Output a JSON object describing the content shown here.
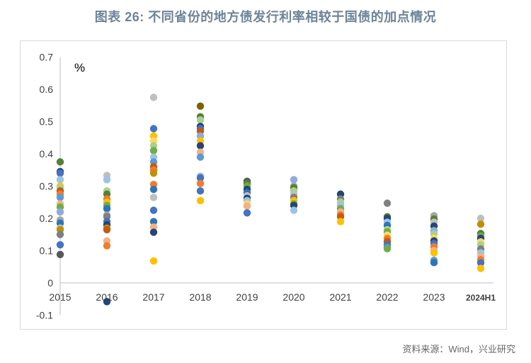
{
  "title": "图表 26: 不同省份的地方债发行利率相较于国债的加点情况",
  "source": "资料来源：Wind，兴业研究",
  "chart_data": {
    "type": "scatter",
    "unit_label": "%",
    "categories": [
      "2015",
      "2016",
      "2017",
      "2018",
      "2019",
      "2020",
      "2021",
      "2022",
      "2023",
      "2024H1"
    ],
    "ylim": [
      -0.1,
      0.7
    ],
    "yticks": [
      "-0.1",
      "0",
      "0.1",
      "0.2",
      "0.3",
      "0.4",
      "0.5",
      "0.6",
      "0.7"
    ],
    "grid": false,
    "legend": "none",
    "points": [
      {
        "x": "2015",
        "y": 0.375,
        "color": "#548235"
      },
      {
        "x": "2015",
        "y": 0.345,
        "color": "#264478"
      },
      {
        "x": "2015",
        "y": 0.34,
        "color": "#4472c4"
      },
      {
        "x": "2015",
        "y": 0.32,
        "color": "#9dc3e6"
      },
      {
        "x": "2015",
        "y": 0.3,
        "color": "#ffc000"
      },
      {
        "x": "2015",
        "y": 0.295,
        "color": "#a9d18e"
      },
      {
        "x": "2015",
        "y": 0.285,
        "color": "#c55a11"
      },
      {
        "x": "2015",
        "y": 0.275,
        "color": "#ed7d31"
      },
      {
        "x": "2015",
        "y": 0.265,
        "color": "#5b9bd5"
      },
      {
        "x": "2015",
        "y": 0.245,
        "color": "#f4b183"
      },
      {
        "x": "2015",
        "y": 0.235,
        "color": "#70ad47"
      },
      {
        "x": "2015",
        "y": 0.22,
        "color": "#8faadc"
      },
      {
        "x": "2015",
        "y": 0.195,
        "color": "#a5a5a5"
      },
      {
        "x": "2015",
        "y": 0.185,
        "color": "#2e75b6"
      },
      {
        "x": "2015",
        "y": 0.17,
        "color": "#bfbfbf"
      },
      {
        "x": "2015",
        "y": 0.165,
        "color": "#bf9000"
      },
      {
        "x": "2015",
        "y": 0.15,
        "color": "#7f7f7f"
      },
      {
        "x": "2015",
        "y": 0.118,
        "color": "#4472c4"
      },
      {
        "x": "2015",
        "y": 0.088,
        "color": "#595959"
      },
      {
        "x": "2016",
        "y": 0.333,
        "color": "#bfbfbf"
      },
      {
        "x": "2016",
        "y": 0.32,
        "color": "#9dc3e6"
      },
      {
        "x": "2016",
        "y": 0.285,
        "color": "#a9d18e"
      },
      {
        "x": "2016",
        "y": 0.275,
        "color": "#548235"
      },
      {
        "x": "2016",
        "y": 0.26,
        "color": "#ed7d31"
      },
      {
        "x": "2016",
        "y": 0.25,
        "color": "#ffc000"
      },
      {
        "x": "2016",
        "y": 0.24,
        "color": "#70ad47"
      },
      {
        "x": "2016",
        "y": 0.23,
        "color": "#2e75b6"
      },
      {
        "x": "2016",
        "y": 0.21,
        "color": "#a5a5a5"
      },
      {
        "x": "2016",
        "y": 0.205,
        "color": "#7f7f7f"
      },
      {
        "x": "2016",
        "y": 0.19,
        "color": "#4472c4"
      },
      {
        "x": "2016",
        "y": 0.18,
        "color": "#264478"
      },
      {
        "x": "2016",
        "y": 0.17,
        "color": "#bf9000"
      },
      {
        "x": "2016",
        "y": 0.165,
        "color": "#c55a11"
      },
      {
        "x": "2016",
        "y": 0.13,
        "color": "#f4b183"
      },
      {
        "x": "2016",
        "y": 0.115,
        "color": "#ed7d31"
      },
      {
        "x": "2016",
        "y": -0.058,
        "color": "#264478"
      },
      {
        "x": "2017",
        "y": 0.575,
        "color": "#bfbfbf"
      },
      {
        "x": "2017",
        "y": 0.478,
        "color": "#4472c4"
      },
      {
        "x": "2017",
        "y": 0.455,
        "color": "#ffc000"
      },
      {
        "x": "2017",
        "y": 0.44,
        "color": "#ffd966"
      },
      {
        "x": "2017",
        "y": 0.425,
        "color": "#a9d18e"
      },
      {
        "x": "2017",
        "y": 0.41,
        "color": "#70ad47"
      },
      {
        "x": "2017",
        "y": 0.39,
        "color": "#9dc3e6"
      },
      {
        "x": "2017",
        "y": 0.375,
        "color": "#5b9bd5"
      },
      {
        "x": "2017",
        "y": 0.36,
        "color": "#c55a11"
      },
      {
        "x": "2017",
        "y": 0.35,
        "color": "#ed7d31"
      },
      {
        "x": "2017",
        "y": 0.34,
        "color": "#bf9000"
      },
      {
        "x": "2017",
        "y": 0.305,
        "color": "#ed7d31"
      },
      {
        "x": "2017",
        "y": 0.29,
        "color": "#2e75b6"
      },
      {
        "x": "2017",
        "y": 0.265,
        "color": "#bfbfbf"
      },
      {
        "x": "2017",
        "y": 0.225,
        "color": "#4472c4"
      },
      {
        "x": "2017",
        "y": 0.19,
        "color": "#2e75b6"
      },
      {
        "x": "2017",
        "y": 0.173,
        "color": "#f4b183"
      },
      {
        "x": "2017",
        "y": 0.157,
        "color": "#264478"
      },
      {
        "x": "2017",
        "y": 0.068,
        "color": "#ffc000"
      },
      {
        "x": "2018",
        "y": 0.548,
        "color": "#7f6000"
      },
      {
        "x": "2018",
        "y": 0.515,
        "color": "#548235"
      },
      {
        "x": "2018",
        "y": 0.505,
        "color": "#a9d18e"
      },
      {
        "x": "2018",
        "y": 0.485,
        "color": "#264478"
      },
      {
        "x": "2018",
        "y": 0.478,
        "color": "#4472c4"
      },
      {
        "x": "2018",
        "y": 0.47,
        "color": "#c55a11"
      },
      {
        "x": "2018",
        "y": 0.455,
        "color": "#8faadc"
      },
      {
        "x": "2018",
        "y": 0.44,
        "color": "#ffc000"
      },
      {
        "x": "2018",
        "y": 0.425,
        "color": "#264478"
      },
      {
        "x": "2018",
        "y": 0.405,
        "color": "#f4b183"
      },
      {
        "x": "2018",
        "y": 0.39,
        "color": "#5b9bd5"
      },
      {
        "x": "2018",
        "y": 0.33,
        "color": "#8faadc"
      },
      {
        "x": "2018",
        "y": 0.325,
        "color": "#4472c4"
      },
      {
        "x": "2018",
        "y": 0.308,
        "color": "#ed7d31"
      },
      {
        "x": "2018",
        "y": 0.285,
        "color": "#4472c4"
      },
      {
        "x": "2018",
        "y": 0.255,
        "color": "#ffc000"
      },
      {
        "x": "2019",
        "y": 0.315,
        "color": "#595959"
      },
      {
        "x": "2019",
        "y": 0.308,
        "color": "#548235"
      },
      {
        "x": "2019",
        "y": 0.3,
        "color": "#70ad47"
      },
      {
        "x": "2019",
        "y": 0.29,
        "color": "#264478"
      },
      {
        "x": "2019",
        "y": 0.28,
        "color": "#2e75b6"
      },
      {
        "x": "2019",
        "y": 0.27,
        "color": "#bfbfbf"
      },
      {
        "x": "2019",
        "y": 0.262,
        "color": "#264478"
      },
      {
        "x": "2019",
        "y": 0.255,
        "color": "#9dc3e6"
      },
      {
        "x": "2019",
        "y": 0.245,
        "color": "#ffd966"
      },
      {
        "x": "2019",
        "y": 0.238,
        "color": "#f4b183"
      },
      {
        "x": "2019",
        "y": 0.217,
        "color": "#4472c4"
      },
      {
        "x": "2020",
        "y": 0.32,
        "color": "#8faadc"
      },
      {
        "x": "2020",
        "y": 0.3,
        "color": "#a5a5a5"
      },
      {
        "x": "2020",
        "y": 0.295,
        "color": "#548235"
      },
      {
        "x": "2020",
        "y": 0.285,
        "color": "#a9d18e"
      },
      {
        "x": "2020",
        "y": 0.275,
        "color": "#bfbfbf"
      },
      {
        "x": "2020",
        "y": 0.265,
        "color": "#7f7f7f"
      },
      {
        "x": "2020",
        "y": 0.255,
        "color": "#ffc000"
      },
      {
        "x": "2020",
        "y": 0.245,
        "color": "#70ad47"
      },
      {
        "x": "2020",
        "y": 0.24,
        "color": "#264478"
      },
      {
        "x": "2020",
        "y": 0.225,
        "color": "#9dc3e6"
      },
      {
        "x": "2021",
        "y": 0.275,
        "color": "#264478"
      },
      {
        "x": "2021",
        "y": 0.26,
        "color": "#7f7f7f"
      },
      {
        "x": "2021",
        "y": 0.25,
        "color": "#a9d18e"
      },
      {
        "x": "2021",
        "y": 0.24,
        "color": "#9dc3e6"
      },
      {
        "x": "2021",
        "y": 0.23,
        "color": "#70ad47"
      },
      {
        "x": "2021",
        "y": 0.22,
        "color": "#f4b183"
      },
      {
        "x": "2021",
        "y": 0.21,
        "color": "#ed7d31"
      },
      {
        "x": "2021",
        "y": 0.205,
        "color": "#c55a11"
      },
      {
        "x": "2021",
        "y": 0.19,
        "color": "#ffc000"
      },
      {
        "x": "2022",
        "y": 0.247,
        "color": "#7f7f7f"
      },
      {
        "x": "2022",
        "y": 0.205,
        "color": "#548235"
      },
      {
        "x": "2022",
        "y": 0.2,
        "color": "#264478"
      },
      {
        "x": "2022",
        "y": 0.188,
        "color": "#9dc3e6"
      },
      {
        "x": "2022",
        "y": 0.178,
        "color": "#2e75b6"
      },
      {
        "x": "2022",
        "y": 0.165,
        "color": "#a9d18e"
      },
      {
        "x": "2022",
        "y": 0.158,
        "color": "#70ad47"
      },
      {
        "x": "2022",
        "y": 0.148,
        "color": "#ffd966"
      },
      {
        "x": "2022",
        "y": 0.138,
        "color": "#ed7d31"
      },
      {
        "x": "2022",
        "y": 0.128,
        "color": "#c55a11"
      },
      {
        "x": "2022",
        "y": 0.118,
        "color": "#4472c4"
      },
      {
        "x": "2022",
        "y": 0.11,
        "color": "#5b9bd5"
      },
      {
        "x": "2022",
        "y": 0.106,
        "color": "#70ad47"
      },
      {
        "x": "2023",
        "y": 0.208,
        "color": "#a5a5a5"
      },
      {
        "x": "2023",
        "y": 0.198,
        "color": "#548235"
      },
      {
        "x": "2023",
        "y": 0.188,
        "color": "#bfbfbf"
      },
      {
        "x": "2023",
        "y": 0.176,
        "color": "#264478"
      },
      {
        "x": "2023",
        "y": 0.162,
        "color": "#8faadc"
      },
      {
        "x": "2023",
        "y": 0.152,
        "color": "#a9d18e"
      },
      {
        "x": "2023",
        "y": 0.138,
        "color": "#ffd966"
      },
      {
        "x": "2023",
        "y": 0.13,
        "color": "#264478"
      },
      {
        "x": "2023",
        "y": 0.122,
        "color": "#4472c4"
      },
      {
        "x": "2023",
        "y": 0.112,
        "color": "#ed7d31"
      },
      {
        "x": "2023",
        "y": 0.1,
        "color": "#f4b183"
      },
      {
        "x": "2023",
        "y": 0.093,
        "color": "#ffc000"
      },
      {
        "x": "2023",
        "y": 0.07,
        "color": "#5b9bd5"
      },
      {
        "x": "2023",
        "y": 0.063,
        "color": "#2e75b6"
      },
      {
        "x": "2024H1",
        "y": 0.2,
        "color": "#bfbfbf"
      },
      {
        "x": "2024H1",
        "y": 0.182,
        "color": "#bf9000"
      },
      {
        "x": "2024H1",
        "y": 0.153,
        "color": "#548235"
      },
      {
        "x": "2024H1",
        "y": 0.145,
        "color": "#70ad47"
      },
      {
        "x": "2024H1",
        "y": 0.138,
        "color": "#264478"
      },
      {
        "x": "2024H1",
        "y": 0.127,
        "color": "#ffd966"
      },
      {
        "x": "2024H1",
        "y": 0.118,
        "color": "#a9d18e"
      },
      {
        "x": "2024H1",
        "y": 0.105,
        "color": "#7f7f7f"
      },
      {
        "x": "2024H1",
        "y": 0.093,
        "color": "#9dc3e6"
      },
      {
        "x": "2024H1",
        "y": 0.082,
        "color": "#f4b183"
      },
      {
        "x": "2024H1",
        "y": 0.072,
        "color": "#ed7d31"
      },
      {
        "x": "2024H1",
        "y": 0.062,
        "color": "#4472c4"
      },
      {
        "x": "2024H1",
        "y": 0.045,
        "color": "#ffc000"
      }
    ]
  }
}
